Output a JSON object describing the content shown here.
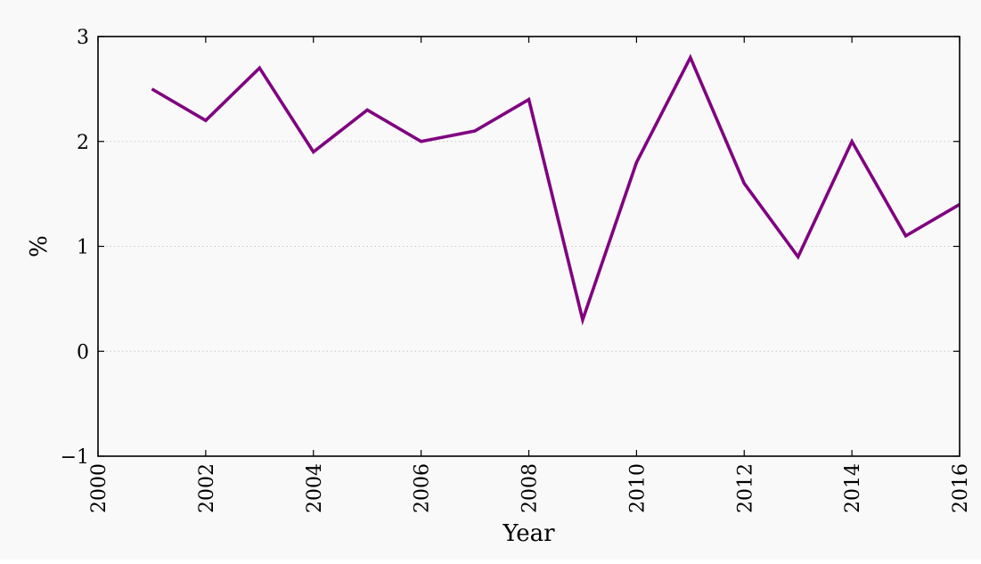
{
  "chart_data": {
    "type": "line",
    "title": "",
    "xlabel": "Year",
    "ylabel": "%",
    "xlim": [
      2000,
      2016
    ],
    "ylim": [
      -1,
      3
    ],
    "x_ticks": [
      2000,
      2002,
      2004,
      2006,
      2008,
      2010,
      2012,
      2014,
      2016
    ],
    "y_ticks": [
      -1,
      0,
      1,
      2,
      3
    ],
    "x_tick_labels": [
      "2000",
      "2002",
      "2004",
      "2006",
      "2008",
      "2010",
      "2012",
      "2014",
      "2016"
    ],
    "y_tick_labels": [
      "−1",
      "0",
      "1",
      "2",
      "3"
    ],
    "grid": "horizontal-dotted",
    "legend": "none",
    "series": [
      {
        "color": "#800080",
        "x": [
          2001,
          2002,
          2003,
          2004,
          2005,
          2006,
          2007,
          2008,
          2009,
          2010,
          2011,
          2012,
          2013,
          2014,
          2015,
          2016
        ],
        "y": [
          2.5,
          2.2,
          2.7,
          1.9,
          2.3,
          2.0,
          2.1,
          2.4,
          0.3,
          1.8,
          2.8,
          1.6,
          0.9,
          2.0,
          1.1,
          1.4
        ]
      }
    ]
  }
}
